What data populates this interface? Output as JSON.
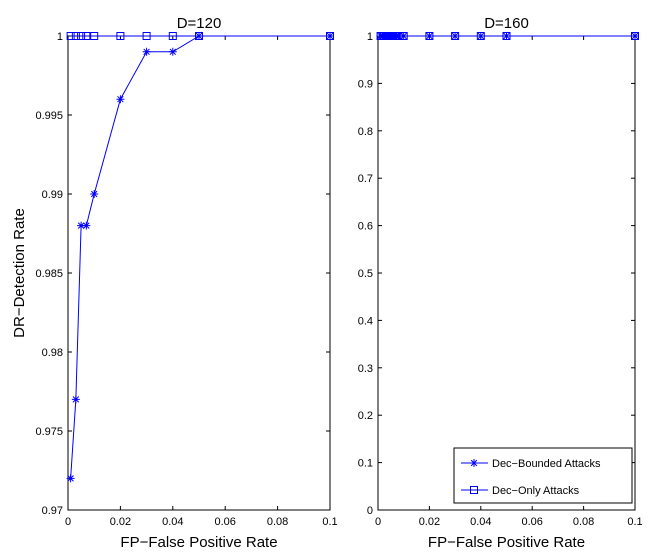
{
  "chart_data": [
    {
      "type": "line",
      "title": "D=120",
      "xlabel": "FP−False Positive Rate",
      "ylabel": "DR−Detection Rate",
      "xlim": [
        0,
        0.1
      ],
      "ylim": [
        0.97,
        1
      ],
      "xticks": [
        0,
        0.02,
        0.04,
        0.06,
        0.08,
        0.1
      ],
      "xtick_labels": [
        "0",
        "0.02",
        "0.04",
        "0.06",
        "0.08",
        "0.1"
      ],
      "yticks": [
        0.97,
        0.975,
        0.98,
        0.985,
        0.99,
        0.995,
        1
      ],
      "ytick_labels": [
        "0.97",
        "0.975",
        "0.98",
        "0.985",
        "0.99",
        "0.995",
        "1"
      ],
      "grid": false,
      "series": [
        {
          "name": "Dec−Bounded Attacks",
          "marker": "star",
          "x": [
            0.001,
            0.003,
            0.005,
            0.007,
            0.01,
            0.02,
            0.03,
            0.04,
            0.05,
            0.1
          ],
          "y": [
            0.972,
            0.977,
            0.988,
            0.988,
            0.99,
            0.996,
            0.999,
            0.999,
            1,
            1
          ]
        },
        {
          "name": "Dec−Only Attacks",
          "marker": "square",
          "x": [
            0.001,
            0.003,
            0.005,
            0.007,
            0.01,
            0.02,
            0.03,
            0.04,
            0.05,
            0.1
          ],
          "y": [
            1,
            1,
            1,
            1,
            1,
            1,
            1,
            1,
            1,
            1
          ]
        }
      ]
    },
    {
      "type": "line",
      "title": "D=160",
      "xlabel": "FP−False Positive Rate",
      "ylabel": "",
      "xlim": [
        0,
        0.1
      ],
      "ylim": [
        0,
        1
      ],
      "xticks": [
        0,
        0.02,
        0.04,
        0.06,
        0.08,
        0.1
      ],
      "xtick_labels": [
        "0",
        "0.02",
        "0.04",
        "0.06",
        "0.08",
        "0.1"
      ],
      "yticks": [
        0,
        0.1,
        0.2,
        0.3,
        0.4,
        0.5,
        0.6,
        0.7,
        0.8,
        0.9,
        1
      ],
      "ytick_labels": [
        "0",
        "0.1",
        "0.2",
        "0.3",
        "0.4",
        "0.5",
        "0.6",
        "0.7",
        "0.8",
        "0.9",
        "1"
      ],
      "grid": false,
      "legend": "bottom-right",
      "series": [
        {
          "name": "Dec−Bounded Attacks",
          "marker": "star",
          "x": [
            0.001,
            0.002,
            0.003,
            0.004,
            0.005,
            0.006,
            0.007,
            0.008,
            0.01,
            0.02,
            0.03,
            0.04,
            0.05,
            0.1
          ],
          "y": [
            1,
            1,
            1,
            1,
            1,
            1,
            1,
            1,
            1,
            1,
            1,
            1,
            1,
            1
          ]
        },
        {
          "name": "Dec−Only Attacks",
          "marker": "square",
          "x": [
            0.001,
            0.002,
            0.003,
            0.004,
            0.005,
            0.006,
            0.007,
            0.008,
            0.01,
            0.02,
            0.03,
            0.04,
            0.05,
            0.1
          ],
          "y": [
            1,
            1,
            1,
            1,
            1,
            1,
            1,
            1,
            1,
            1,
            1,
            1,
            1,
            1
          ]
        }
      ]
    }
  ],
  "colors": {
    "series": "#0000ff",
    "axes": "#000000",
    "background": "#ffffff"
  }
}
